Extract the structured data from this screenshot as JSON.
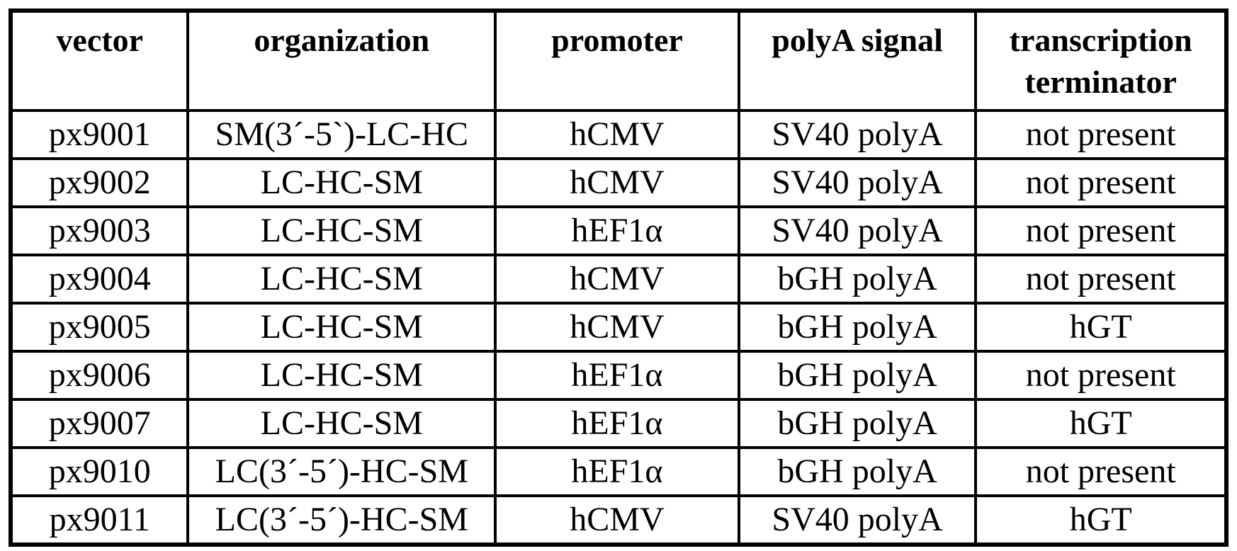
{
  "document": {
    "background_color": "#ffffff",
    "text_color": "#000000",
    "border_color": "#000000"
  },
  "table": {
    "columns": [
      "vector",
      "organization",
      "promoter",
      "polyA signal",
      "transcription terminator"
    ],
    "rows": [
      [
        "px9001",
        "SM(3´-5`)-LC-HC",
        "hCMV",
        "SV40 polyA",
        "not present"
      ],
      [
        "px9002",
        "LC-HC-SM",
        "hCMV",
        "SV40 polyA",
        "not present"
      ],
      [
        "px9003",
        "LC-HC-SM",
        "hEF1α",
        "SV40 polyA",
        "not present"
      ],
      [
        "px9004",
        "LC-HC-SM",
        "hCMV",
        "bGH polyA",
        "not present"
      ],
      [
        "px9005",
        "LC-HC-SM",
        "hCMV",
        "bGH polyA",
        "hGT"
      ],
      [
        "px9006",
        "LC-HC-SM",
        "hEF1α",
        "bGH polyA",
        "not present"
      ],
      [
        "px9007",
        "LC-HC-SM",
        "hEF1α",
        "bGH polyA",
        "hGT"
      ],
      [
        "px9010",
        "LC(3´-5´)-HC-SM",
        "hEF1α",
        "bGH polyA",
        "not present"
      ],
      [
        "px9011",
        "LC(3´-5´)-HC-SM",
        "hCMV",
        "SV40 polyA",
        "hGT"
      ]
    ]
  }
}
